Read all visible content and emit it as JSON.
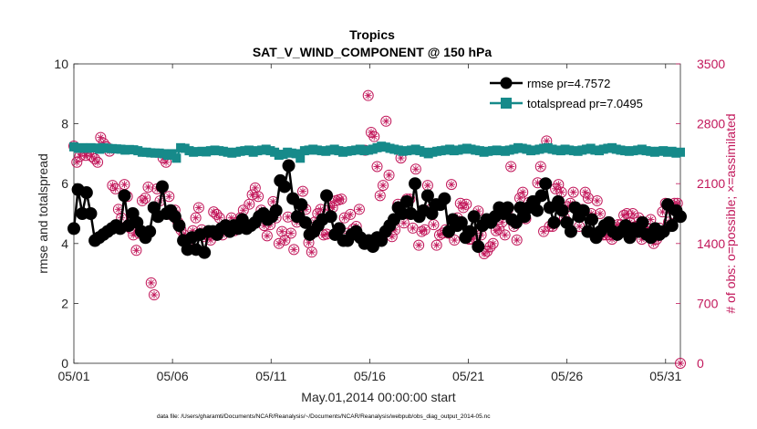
{
  "chart_data": {
    "type": "line",
    "title": "Tropics",
    "subtitle": "SAT_V_WIND_COMPONENT @ 150 hPa",
    "xlabel": "May.01,2014 00:00:00 start",
    "ylabel": "rmse and totalspread",
    "y2label": "# of obs: o=possible; ×=assimilated",
    "footnote": "data file: /Users/gharamti/Documents/NCAR/Reanalysis/~/Documents/NCAR/Reanalysis/webpub/obs_diag_output_2014-05.nc",
    "xlim": [
      0,
      30.75
    ],
    "ylim": [
      0,
      10
    ],
    "y2lim": [
      0,
      3500
    ],
    "xticks": [
      0,
      5,
      10,
      15,
      20,
      25,
      30
    ],
    "xtick_labels": [
      "05/01",
      "05/06",
      "05/11",
      "05/16",
      "05/21",
      "05/26",
      "05/31"
    ],
    "yticks": [
      0,
      2,
      4,
      6,
      8,
      10
    ],
    "ytick_labels": [
      "0",
      "2",
      "4",
      "6",
      "8",
      "10"
    ],
    "y2ticks": [
      0,
      700,
      1400,
      2100,
      2800,
      3500
    ],
    "y2tick_labels": [
      "0",
      "700",
      "1400",
      "2100",
      "2800",
      "3500"
    ],
    "legend_position": "top-right",
    "colors": {
      "rmse": "#000000",
      "totalspread": "#168a8a",
      "obs": "#c2185b",
      "axis_left": "#262626",
      "axis_right": "#c2185b"
    },
    "series": [
      {
        "name": "rmse",
        "legend": "rmse pr=4.7572",
        "values": [
          4.5,
          5.8,
          5.0,
          5.7,
          5.0,
          4.1,
          4.2,
          4.3,
          4.4,
          4.5,
          4.6,
          4.5,
          5.6,
          4.6,
          5.0,
          4.7,
          4.4,
          4.2,
          4.4,
          5.2,
          4.9,
          5.9,
          5.0,
          5.1,
          4.9,
          4.6,
          4.1,
          3.8,
          4.2,
          3.8,
          4.3,
          3.7,
          4.4,
          4.4,
          4.3,
          4.5,
          4.6,
          4.4,
          4.6,
          4.5,
          4.8,
          4.5,
          4.6,
          4.7,
          4.9,
          5.0,
          4.8,
          4.9,
          5.1,
          6.1,
          5.9,
          6.6,
          5.5,
          4.9,
          5.3,
          4.7,
          4.3,
          4.4,
          4.6,
          4.8,
          5.6,
          4.9,
          4.3,
          4.5,
          4.1,
          4.1,
          4.3,
          4.4,
          4.2,
          4.0,
          4.1,
          3.9,
          4.2,
          4.1,
          4.4,
          4.6,
          4.8,
          5.2,
          5.0,
          5.4,
          5.0,
          6.0,
          4.9,
          5.1,
          5.6,
          5.0,
          5.3,
          5.3,
          5.5,
          4.4,
          4.8,
          4.6,
          4.7,
          4.2,
          4.4,
          4.9,
          3.9,
          4.6,
          4.8,
          4.7,
          4.9,
          5.2,
          5.0,
          5.2,
          4.8,
          4.7,
          5.2,
          4.9,
          5.2,
          5.4,
          5.1,
          5.6,
          6.0,
          5.2,
          4.7,
          5.4,
          5.1,
          4.7,
          4.4,
          5.2,
          4.9,
          5.1,
          4.4,
          4.8,
          4.2,
          4.4,
          4.6,
          4.7,
          4.4,
          4.3,
          4.4,
          4.6,
          4.2,
          4.5,
          4.4,
          4.7,
          4.3,
          4.2,
          4.5,
          4.3,
          4.4,
          5.3,
          4.6,
          5.1,
          4.9
        ]
      },
      {
        "name": "totalspread",
        "legend": "totalspread pr=7.0495",
        "values": [
          7.23,
          7.18,
          7.2,
          7.18,
          7.2,
          7.19,
          7.15,
          7.2,
          7.18,
          7.17,
          7.16,
          7.15,
          7.12,
          7.14,
          7.13,
          7.1,
          7.05,
          7.05,
          7.03,
          7.02,
          7.02,
          7.0,
          6.95,
          7.0,
          6.85,
          7.2,
          7.18,
          7.1,
          7.05,
          7.07,
          7.08,
          7.06,
          7.1,
          7.12,
          7.1,
          7.08,
          7.05,
          7.02,
          7.05,
          7.08,
          7.1,
          7.12,
          7.05,
          7.1,
          7.12,
          7.15,
          7.1,
          7.05,
          6.95,
          6.98,
          7.05,
          7.02,
          7.0,
          6.85,
          7.1,
          7.12,
          7.15,
          7.12,
          7.1,
          7.08,
          7.12,
          7.15,
          7.1,
          7.05,
          7.08,
          7.1,
          7.12,
          7.15,
          7.1,
          7.12,
          7.15,
          7.2,
          7.25,
          7.22,
          7.18,
          7.15,
          7.12,
          7.08,
          7.1,
          7.12,
          7.15,
          7.1,
          7.05,
          7.0,
          7.05,
          7.08,
          7.1,
          7.12,
          7.15,
          7.1,
          7.12,
          7.15,
          7.18,
          7.15,
          7.12,
          7.1,
          7.05,
          7.08,
          7.1,
          7.12,
          7.1,
          7.08,
          7.12,
          7.15,
          7.2,
          7.18,
          7.15,
          7.1,
          7.12,
          7.15,
          7.18,
          7.2,
          7.15,
          7.12,
          7.1,
          7.15,
          7.12,
          7.1,
          7.08,
          7.12,
          7.15,
          7.18,
          7.12,
          7.1,
          7.15,
          7.18,
          7.2,
          7.15,
          7.12,
          7.1,
          7.08,
          7.1,
          7.12,
          7.15,
          7.1,
          7.08,
          7.05,
          7.08,
          7.1,
          7.05,
          7.08,
          7.02,
          7.05
        ]
      },
      {
        "name": "obs possible / assimilated",
        "axis": "right",
        "values": [
          2540,
          2350,
          2420,
          2480,
          2430,
          2480,
          2420,
          2390,
          2350,
          2640,
          2570,
          2530,
          2480,
          2080,
          2040,
          1800,
          1700,
          2090,
          1950,
          1580,
          1500,
          1320,
          1520,
          1900,
          1930,
          2060,
          940,
          800,
          2040,
          1900,
          2400,
          2350,
          1950,
          1730,
          1790,
          1650,
          1560,
          1500,
          1450,
          1440,
          1550,
          1700,
          1820,
          1560,
          1480,
          1500,
          1440,
          1770,
          1740,
          1700,
          1500,
          1560,
          1560,
          1700,
          1550,
          1650,
          1700,
          1790,
          1610,
          1860,
          1970,
          2050,
          1950,
          1790,
          1610,
          1490,
          1620,
          1890,
          1700,
          1400,
          1540,
          1440,
          1710,
          1520,
          1330,
          1650,
          1830,
          2010,
          1800,
          1410,
          1300,
          1650,
          1750,
          1800,
          1500,
          1510,
          1840,
          1820,
          1900,
          1910,
          1920,
          1700,
          1520,
          1740,
          1570,
          1600,
          1800,
          1450,
          2490,
          3130,
          2700,
          2650,
          2300,
          1960,
          2080,
          2830,
          2200,
          1480,
          1560,
          1860,
          2400,
          1640,
          1920,
          1920,
          1580,
          2270,
          1380,
          1540,
          1560,
          2080,
          1800,
          1620,
          1380,
          1500,
          1520,
          1560,
          1520,
          2090,
          1440,
          1700,
          1870,
          1820,
          1860,
          1450,
          1450,
          1520,
          1780,
          1500,
          1280,
          1310,
          1360,
          1400,
          1550,
          1570,
          1650,
          1500,
          1800,
          2300,
          1600,
          1440,
          1930,
          2000,
          1690,
          1880,
          1880,
          1890,
          2110,
          2300,
          1540,
          2600,
          1600,
          1600,
          2040,
          2090,
          2000,
          1700,
          1830,
          1870,
          2000,
          1800,
          1600,
          1800,
          2000,
          1930,
          1750,
          1500,
          1900,
          1750,
          1500,
          1500,
          1500,
          1450,
          1560,
          1620,
          1620,
          1730,
          1750,
          1650,
          1750,
          1600,
          1700,
          1450,
          1550,
          1580,
          1680,
          1400,
          1450,
          1580,
          1770,
          1870,
          1650,
          1800,
          1870,
          1870,
          0
        ]
      }
    ]
  }
}
